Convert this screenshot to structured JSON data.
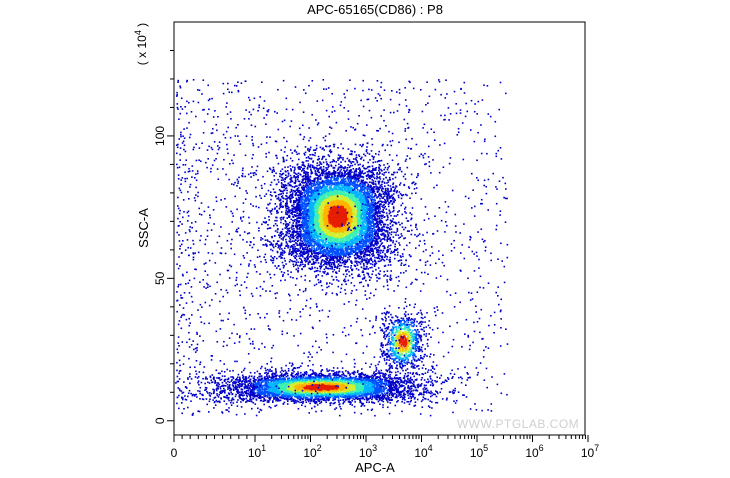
{
  "chart_data": {
    "type": "scatter",
    "title": "APC-65165(CD86) : P8",
    "xlabel": "APC-A",
    "ylabel": "SSC-A",
    "y_scale_label": "( x 10",
    "y_scale_exp": "4",
    "y_scale_close": " )",
    "x_scale": "biexponential",
    "xlim": [
      0,
      10000000
    ],
    "ylim": [
      -5,
      140
    ],
    "x_ticks": [
      {
        "base": "0",
        "exp": ""
      },
      {
        "base": "10",
        "exp": "1"
      },
      {
        "base": "10",
        "exp": "2"
      },
      {
        "base": "10",
        "exp": "3"
      },
      {
        "base": "10",
        "exp": "4"
      },
      {
        "base": "10",
        "exp": "5"
      },
      {
        "base": "10",
        "exp": "6"
      },
      {
        "base": "10",
        "exp": "7"
      }
    ],
    "y_ticks": [
      "0",
      "50",
      "100"
    ],
    "y_tick_values": [
      0,
      50,
      100
    ],
    "density_colormap": [
      "#0000c8",
      "#0050ff",
      "#00b4ff",
      "#3cf0b4",
      "#d2f032",
      "#ffb400",
      "#e61e00"
    ],
    "populations": [
      {
        "description": "tall",
        "x_center": 300,
        "y_center": 72,
        "y_range": [
          10,
          122
        ],
        "x_range": [
          40,
          1200
        ]
      },
      {
        "description": "low",
        "x_center": 150,
        "y_center": 12,
        "y_range": [
          2,
          30
        ],
        "x_range": [
          5,
          800
        ]
      },
      {
        "description": "small",
        "x_center": 4500,
        "y_center": 28,
        "y_range": [
          15,
          50
        ],
        "x_range": [
          2500,
          7500
        ]
      }
    ],
    "grid": false,
    "legend": "none"
  },
  "watermark": "WWW.PTGLAB.COM"
}
